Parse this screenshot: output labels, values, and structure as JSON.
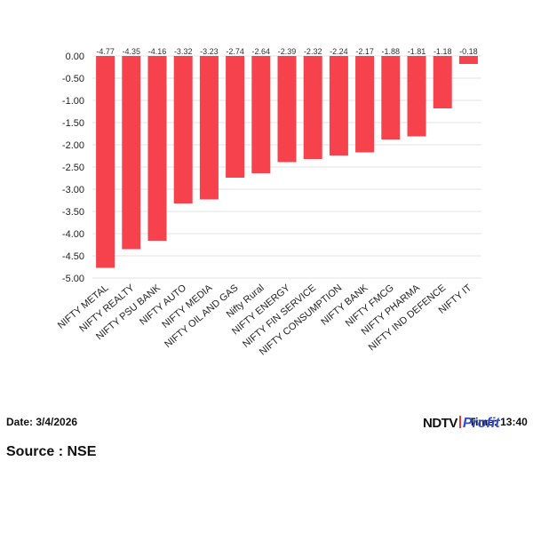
{
  "chart_data": {
    "type": "bar",
    "categories": [
      "NIFTY METAL",
      "NIFTY REALTY",
      "NIFTY PSU BANK",
      "NIFTY AUTO",
      "NIFTY MEDIA",
      "NIFTY OIL AND GAS",
      "Nifty Rural",
      "NIFTY ENERGY",
      "NIFTY FIN SERVICE",
      "NIFTY CONSUMPTION",
      "NIFTY BANK",
      "NIFTY FMCG",
      "NIFTY PHARMA",
      "NIFTY IND DEFENCE",
      "NIFTY IT"
    ],
    "values": [
      -4.77,
      -4.35,
      -4.16,
      -3.32,
      -3.23,
      -2.74,
      -2.64,
      -2.39,
      -2.32,
      -2.24,
      -2.17,
      -1.88,
      -1.81,
      -1.18,
      -0.18
    ],
    "data_labels": [
      "-4.77",
      "-4.35",
      "-4.16",
      "-3.32",
      "-3.23",
      "-2.74",
      "-2.64",
      "-2.39",
      "-2.32",
      "-2.24",
      "-2.17",
      "-1.88",
      "-1.81",
      "-1.18",
      "-0.18"
    ],
    "y_ticks": [
      0,
      -0.5,
      -1,
      -1.5,
      -2,
      -2.5,
      -3,
      -3.5,
      -4,
      -4.5,
      -5
    ],
    "y_tick_labels": [
      "0.00",
      "-0.50",
      "-1.00",
      "-1.50",
      "-2.00",
      "-2.50",
      "-3.00",
      "-3.50",
      "-4.00",
      "-4.50",
      "-5.00"
    ],
    "ylim": [
      -5,
      0
    ],
    "grid": true,
    "bar_color": "#f5424c"
  },
  "footer": {
    "date": "Date: 3/4/2026",
    "time": "Time: 13:40",
    "source": "Source : NSE"
  },
  "logo": {
    "ndtv": "NDTV",
    "profit": "Profit"
  }
}
